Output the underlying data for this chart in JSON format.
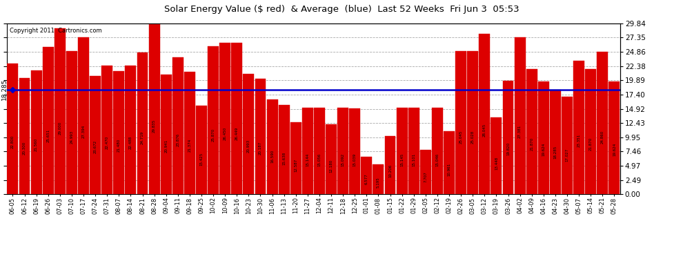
{
  "title": "Solar Energy Value ($ red)  & Average  (blue)  Last 52 Weeks  Fri Jun 3  05:53",
  "copyright": "Copyright 2011  Cartronics.com",
  "average": 18.285,
  "bar_color": "#dd0000",
  "avg_line_color": "#0000cc",
  "background_color": "#ffffff",
  "plot_bg_color": "#ffffff",
  "grid_color": "#aaaaaa",
  "ylim_min": 0.0,
  "ylim_max": 29.84,
  "yticks_right": [
    0.0,
    2.49,
    4.97,
    7.46,
    9.95,
    12.43,
    14.92,
    17.4,
    19.89,
    22.38,
    24.86,
    27.35,
    29.84
  ],
  "categories": [
    "06-05",
    "06-12",
    "06-19",
    "06-26",
    "07-03",
    "07-10",
    "07-17",
    "07-24",
    "07-31",
    "08-07",
    "08-14",
    "08-21",
    "08-28",
    "09-04",
    "09-11",
    "09-18",
    "09-25",
    "10-02",
    "10-09",
    "10-16",
    "10-23",
    "10-30",
    "11-06",
    "11-13",
    "11-20",
    "11-27",
    "12-04",
    "12-11",
    "12-18",
    "12-25",
    "01-01",
    "01-08",
    "01-15",
    "01-22",
    "01-29",
    "02-05",
    "02-12",
    "02-19",
    "02-26",
    "03-05",
    "03-12",
    "03-19",
    "03-26",
    "04-02",
    "04-09",
    "04-16",
    "04-23",
    "04-30",
    "05-07",
    "05-14",
    "05-21",
    "05-28"
  ],
  "values": [
    22.8,
    20.3,
    21.56,
    25.651,
    29.0,
    24.993,
    27.394,
    20.672,
    22.47,
    21.48,
    22.488,
    24.719,
    29.835,
    20.941,
    23.876,
    21.374,
    15.425,
    25.87,
    26.45,
    26.449,
    20.993,
    20.187,
    16.59,
    15.638,
    12.587,
    15.144,
    15.056,
    12.18,
    15.092,
    15.039,
    6.577,
    5.195,
    10.206,
    15.145,
    15.101,
    7.707,
    15.046,
    10.961,
    25.045,
    25.028,
    28.045,
    13.448,
    19.82,
    27.381,
    21.87,
    19.624,
    18.285,
    17.027,
    23.351,
    21.87,
    24.86,
    19.624
  ],
  "value_labels": [
    "22.800",
    "20.300",
    "21.560",
    "25.651",
    "29.000",
    "24.993",
    "27.394",
    "20.672",
    "22.470",
    "21.480",
    "22.488",
    "24.719",
    "29.835",
    "20.941",
    "23.876",
    "21.374",
    "15.425",
    "25.870",
    "26.450",
    "26.449",
    "20.993",
    "20.187",
    "16.590",
    "15.638",
    "12.587",
    "15.144",
    "15.056",
    "12.180",
    "15.092",
    "15.039",
    "6.577",
    "5.195",
    "10.206",
    "15.145",
    "15.101",
    "7.707",
    "15.046",
    "10.961",
    "25.045",
    "25.028",
    "28.045",
    "13.448",
    "19.820",
    "27.381",
    "21.870",
    "19.624",
    "18.285",
    "17.027",
    "23.351",
    "21.870",
    "24.860",
    "19.624"
  ]
}
